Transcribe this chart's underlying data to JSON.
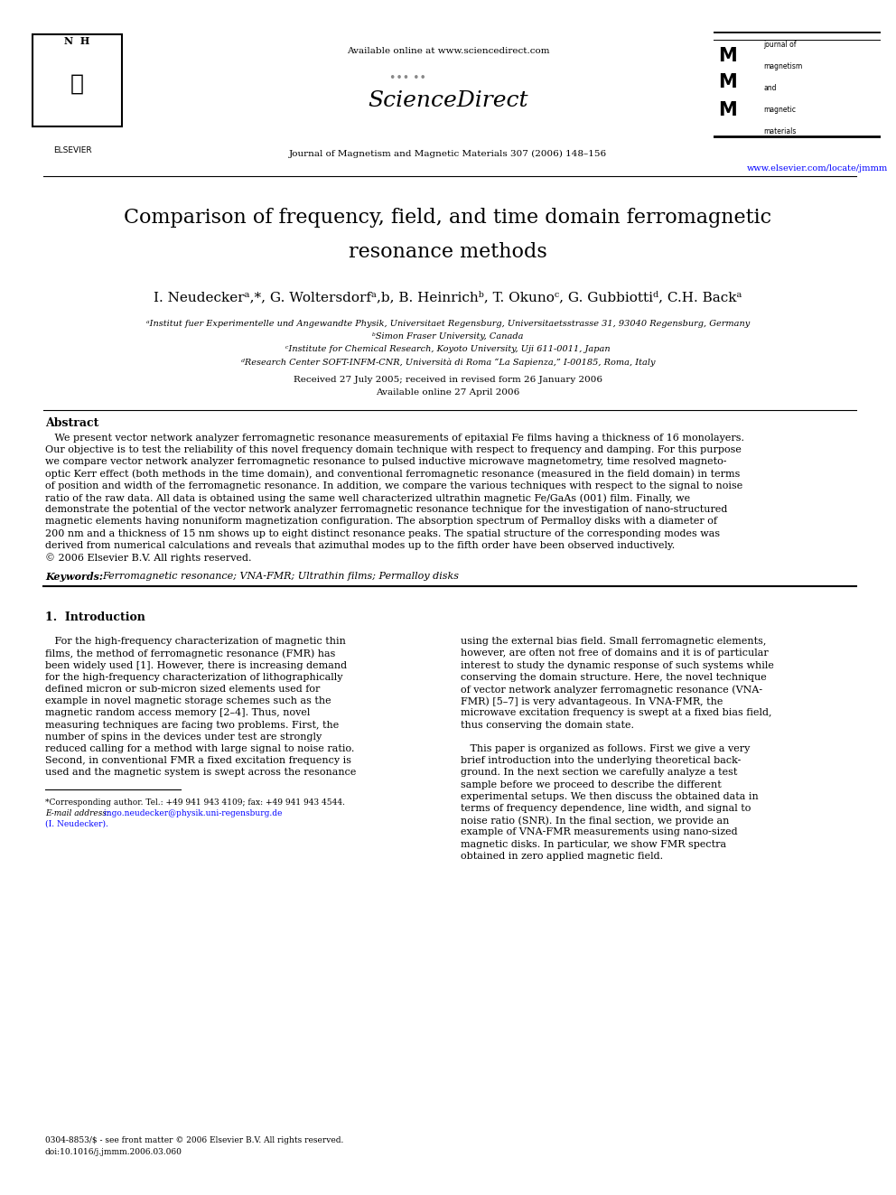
{
  "page_width": 9.92,
  "page_height": 13.23,
  "bg_color": "#ffffff",
  "available_online": "Available online at www.sciencedirect.com",
  "sciencedirect": "ScienceDirect",
  "journal_line": "Journal of Magnetism and Magnetic Materials 307 (2006) 148–156",
  "website": "www.elsevier.com/locate/jmmm",
  "journal_right": [
    "journal of",
    "magnetism",
    "and",
    "magnetic",
    "materials"
  ],
  "title_line1": "Comparison of frequency, field, and time domain ferromagnetic",
  "title_line2": "resonance methods",
  "authors": "I. Neudeckerᵃ,*, G. Woltersdorfᵃ,b, B. Heinrichᵇ, T. Okunoᶜ, G. Gubbiottiᵈ, C.H. Backᵃ",
  "affil1": "ᵃInstitut fuer Experimentelle und Angewandte Physik, Universitaet Regensburg, Universitaetsstrasse 31, 93040 Regensburg, Germany",
  "affil2": "ᵇSimon Fraser University, Canada",
  "affil3": "ᶜInstitute for Chemical Research, Koyoto University, Uji 611-0011, Japan",
  "affil4": "ᵈResearch Center SOFT-INFM-CNR, Università di Roma “La Sapienza,” I-00185, Roma, Italy",
  "received": "Received 27 July 2005; received in revised form 26 January 2006",
  "available": "Available online 27 April 2006",
  "abstract_title": "Abstract",
  "abstract_lines": [
    "   We present vector network analyzer ferromagnetic resonance measurements of epitaxial Fe films having a thickness of 16 monolayers.",
    "Our objective is to test the reliability of this novel frequency domain technique with respect to frequency and damping. For this purpose",
    "we compare vector network analyzer ferromagnetic resonance to pulsed inductive microwave magnetometry, time resolved magneto-",
    "optic Kerr effect (both methods in the time domain), and conventional ferromagnetic resonance (measured in the field domain) in terms",
    "of position and width of the ferromagnetic resonance. In addition, we compare the various techniques with respect to the signal to noise",
    "ratio of the raw data. All data is obtained using the same well characterized ultrathin magnetic Fe/GaAs (001) film. Finally, we",
    "demonstrate the potential of the vector network analyzer ferromagnetic resonance technique for the investigation of nano-structured",
    "magnetic elements having nonuniform magnetization configuration. The absorption spectrum of Permalloy disks with a diameter of",
    "200 nm and a thickness of 15 nm shows up to eight distinct resonance peaks. The spatial structure of the corresponding modes was",
    "derived from numerical calculations and reveals that azimuthal modes up to the fifth order have been observed inductively.",
    "© 2006 Elsevier B.V. All rights reserved."
  ],
  "keywords_label": "Keywords:",
  "keywords_text": "Ferromagnetic resonance; VNA-FMR; Ultrathin films; Permalloy disks",
  "sec1_title": "1.  Introduction",
  "col1_lines": [
    "   For the high-frequency characterization of magnetic thin",
    "films, the method of ferromagnetic resonance (FMR) has",
    "been widely used [1]. However, there is increasing demand",
    "for the high-frequency characterization of lithographically",
    "defined micron or sub-micron sized elements used for",
    "example in novel magnetic storage schemes such as the",
    "magnetic random access memory [2–4]. Thus, novel",
    "measuring techniques are facing two problems. First, the",
    "number of spins in the devices under test are strongly",
    "reduced calling for a method with large signal to noise ratio.",
    "Second, in conventional FMR a fixed excitation frequency is",
    "used and the magnetic system is swept across the resonance"
  ],
  "col2_lines_p1": [
    "using the external bias field. Small ferromagnetic elements,",
    "however, are often not free of domains and it is of particular",
    "interest to study the dynamic response of such systems while",
    "conserving the domain structure. Here, the novel technique",
    "of vector network analyzer ferromagnetic resonance (VNA-",
    "FMR) [5–7] is very advantageous. In VNA-FMR, the",
    "microwave excitation frequency is swept at a fixed bias field,",
    "thus conserving the domain state."
  ],
  "col2_lines_p2": [
    "   This paper is organized as follows. First we give a very",
    "brief introduction into the underlying theoretical back-",
    "ground. In the next section we carefully analyze a test",
    "sample before we proceed to describe the different",
    "experimental setups. We then discuss the obtained data in",
    "terms of frequency dependence, line width, and signal to",
    "noise ratio (SNR). In the final section, we provide an",
    "example of VNA-FMR measurements using nano-sized",
    "magnetic disks. In particular, we show FMR spectra",
    "obtained in zero applied magnetic field."
  ],
  "footnote1": "*Corresponding author. Tel.: +49 941 943 4109; fax: +49 941 943 4544.",
  "footnote2_label": "E-mail address:",
  "footnote2_link": " ingo.neudecker@physik.uni-regensburg.de",
  "footnote3": "(I. Neudecker).",
  "footer1": "0304-8853/$ - see front matter © 2006 Elsevier B.V. All rights reserved.",
  "footer2": "doi:10.1016/j.jmmm.2006.03.060"
}
